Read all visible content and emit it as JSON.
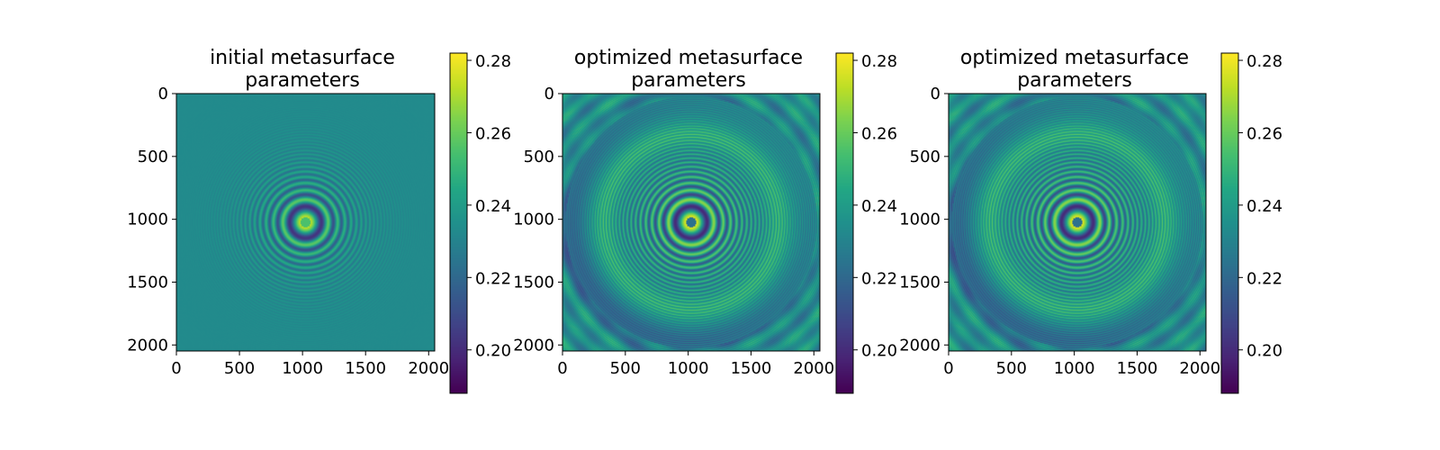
{
  "chart_data": [
    {
      "type": "heatmap",
      "title_lines": [
        "initial metasurface",
        "parameters"
      ],
      "xlim": [
        0,
        2048
      ],
      "ylim": [
        2048,
        0
      ],
      "xticks": [
        0,
        500,
        1000,
        1500,
        2000
      ],
      "yticks": [
        0,
        500,
        1000,
        1500,
        2000
      ],
      "xtick_labels": [
        "0",
        "500",
        "1000",
        "1500",
        "2000"
      ],
      "ytick_labels": [
        "0",
        "500",
        "1000",
        "1500",
        "2000"
      ],
      "colormap": "viridis",
      "colorbar": {
        "vmin": 0.188,
        "vmax": 0.282,
        "ticks": [
          0.2,
          0.22,
          0.24,
          0.26,
          0.28
        ],
        "tick_labels": [
          "0.20",
          "0.22",
          "0.24",
          "0.26",
          "0.28"
        ]
      },
      "pattern": {
        "center": [
          1024,
          1024
        ],
        "background_value": 0.233,
        "description_type": "concentric-rings"
      }
    },
    {
      "type": "heatmap",
      "title_lines": [
        "optimized metasurface",
        "parameters"
      ],
      "xlim": [
        0,
        2048
      ],
      "ylim": [
        2048,
        0
      ],
      "xticks": [
        0,
        500,
        1000,
        1500,
        2000
      ],
      "yticks": [
        0,
        500,
        1000,
        1500,
        2000
      ],
      "xtick_labels": [
        "0",
        "500",
        "1000",
        "1500",
        "2000"
      ],
      "ytick_labels": [
        "0",
        "500",
        "1000",
        "1500",
        "2000"
      ],
      "colormap": "viridis",
      "colorbar": {
        "vmin": 0.188,
        "vmax": 0.282,
        "ticks": [
          0.2,
          0.22,
          0.24,
          0.26,
          0.28
        ],
        "tick_labels": [
          "0.20",
          "0.22",
          "0.24",
          "0.26",
          "0.28"
        ]
      },
      "pattern": {
        "center": [
          1024,
          1024
        ],
        "background_value": 0.235,
        "description_type": "optimized-rings"
      }
    },
    {
      "type": "heatmap",
      "title_lines": [
        "optimized metasurface",
        "parameters"
      ],
      "xlim": [
        0,
        2048
      ],
      "ylim": [
        2048,
        0
      ],
      "xticks": [
        0,
        500,
        1000,
        1500,
        2000
      ],
      "yticks": [
        0,
        500,
        1000,
        1500,
        2000
      ],
      "xtick_labels": [
        "0",
        "500",
        "1000",
        "1500",
        "2000"
      ],
      "ytick_labels": [
        "0",
        "500",
        "1000",
        "1500",
        "2000"
      ],
      "colormap": "viridis",
      "colorbar": {
        "vmin": 0.188,
        "vmax": 0.282,
        "ticks": [
          0.2,
          0.22,
          0.24,
          0.26,
          0.28
        ],
        "tick_labels": [
          "0.20",
          "0.22",
          "0.24",
          "0.26",
          "0.28"
        ]
      },
      "pattern": {
        "center": [
          1024,
          1024
        ],
        "background_value": 0.235,
        "description_type": "optimized-rings"
      }
    }
  ]
}
